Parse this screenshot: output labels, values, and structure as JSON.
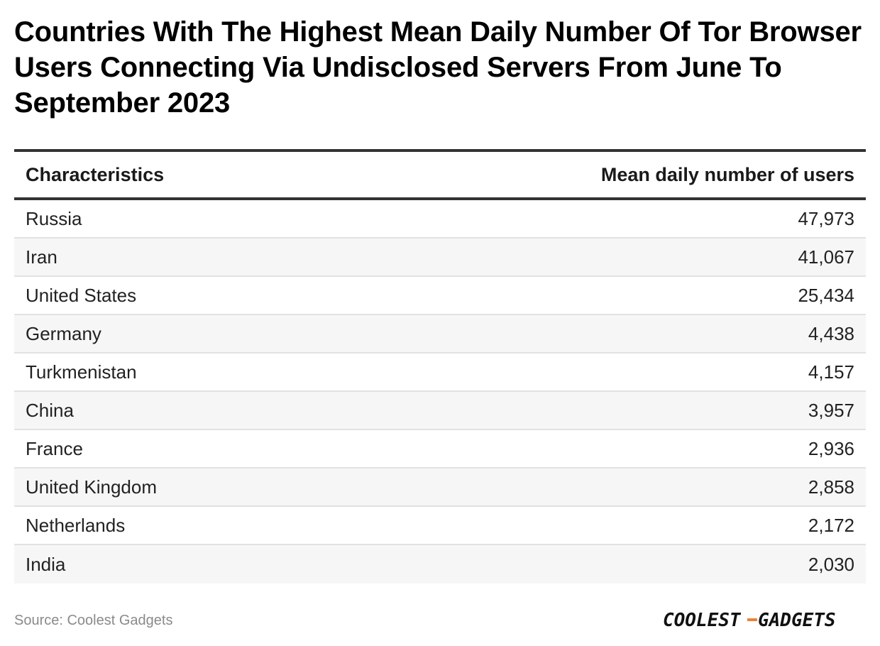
{
  "title": "Countries With The Highest Mean Daily Number Of Tor Browser Users Connecting Via Undisclosed Servers From June To September 2023",
  "chart_data": {
    "type": "table",
    "columns": [
      "Characteristics",
      "Mean daily number of users"
    ],
    "rows": [
      {
        "label": "Russia",
        "value": "47,973"
      },
      {
        "label": "Iran",
        "value": "41,067"
      },
      {
        "label": "United States",
        "value": "25,434"
      },
      {
        "label": "Germany",
        "value": "4,438"
      },
      {
        "label": "Turkmenistan",
        "value": "4,157"
      },
      {
        "label": "China",
        "value": "3,957"
      },
      {
        "label": "France",
        "value": "2,936"
      },
      {
        "label": "United Kingdom",
        "value": "2,858"
      },
      {
        "label": "Netherlands",
        "value": "2,172"
      },
      {
        "label": "India",
        "value": "2,030"
      }
    ]
  },
  "footer": {
    "source": "Source: Coolest Gadgets",
    "logo_text": "COOLEST-GADGETS",
    "logo_color": "#111111",
    "logo_dash_color": "#e8833a"
  }
}
